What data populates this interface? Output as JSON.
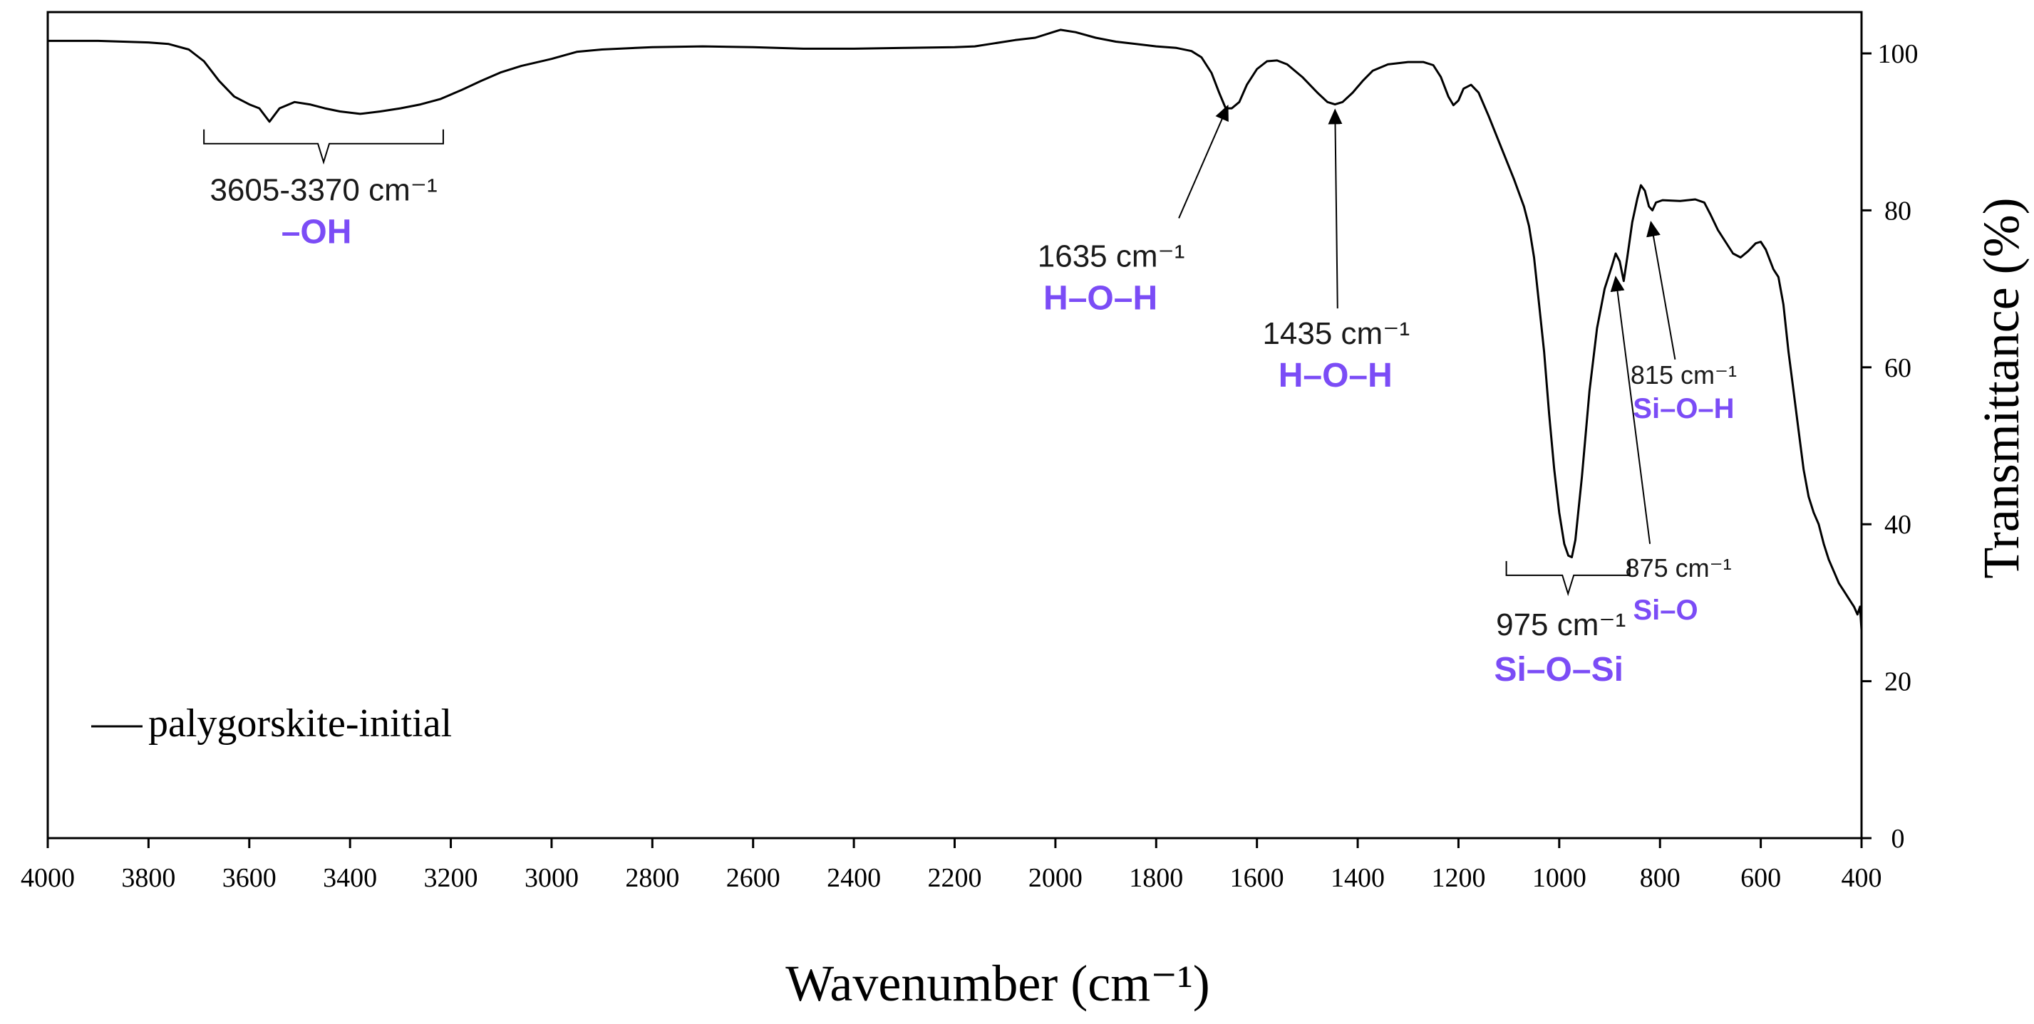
{
  "chart_data": {
    "type": "line",
    "title": "",
    "xlabel": "Wavenumber (cm⁻¹)",
    "ylabel": "Transmittance (%)",
    "xlim": [
      4000,
      400
    ],
    "ylim": [
      0,
      105
    ],
    "x_ticks": [
      4000,
      3800,
      3600,
      3400,
      3200,
      3000,
      2800,
      2600,
      2400,
      2200,
      2000,
      1800,
      1600,
      1400,
      1200,
      1000,
      800,
      600,
      400
    ],
    "y_ticks": [
      0,
      20,
      40,
      60,
      80,
      100
    ],
    "y_axis_side": "right",
    "grid": false,
    "legend": {
      "position": "bottom-left",
      "entries": [
        "palygorskite-initial"
      ]
    },
    "series": [
      {
        "name": "palygorskite-initial",
        "color": "#000000",
        "points": [
          [
            4000,
            101.6
          ],
          [
            3900,
            101.6
          ],
          [
            3800,
            101.4
          ],
          [
            3760,
            101.2
          ],
          [
            3720,
            100.5
          ],
          [
            3690,
            99.0
          ],
          [
            3660,
            96.5
          ],
          [
            3630,
            94.5
          ],
          [
            3600,
            93.5
          ],
          [
            3580,
            93.0
          ],
          [
            3560,
            91.3
          ],
          [
            3540,
            93.0
          ],
          [
            3510,
            93.8
          ],
          [
            3480,
            93.5
          ],
          [
            3450,
            93.0
          ],
          [
            3420,
            92.6
          ],
          [
            3380,
            92.3
          ],
          [
            3340,
            92.6
          ],
          [
            3300,
            93.0
          ],
          [
            3260,
            93.5
          ],
          [
            3220,
            94.2
          ],
          [
            3180,
            95.3
          ],
          [
            3140,
            96.5
          ],
          [
            3100,
            97.6
          ],
          [
            3060,
            98.4
          ],
          [
            3000,
            99.3
          ],
          [
            2950,
            100.2
          ],
          [
            2900,
            100.5
          ],
          [
            2800,
            100.8
          ],
          [
            2700,
            100.9
          ],
          [
            2600,
            100.8
          ],
          [
            2500,
            100.6
          ],
          [
            2400,
            100.6
          ],
          [
            2300,
            100.7
          ],
          [
            2200,
            100.8
          ],
          [
            2160,
            100.9
          ],
          [
            2120,
            101.3
          ],
          [
            2080,
            101.7
          ],
          [
            2040,
            102.0
          ],
          [
            2000,
            102.8
          ],
          [
            1990,
            103.0
          ],
          [
            1960,
            102.7
          ],
          [
            1920,
            102.0
          ],
          [
            1880,
            101.5
          ],
          [
            1840,
            101.2
          ],
          [
            1800,
            100.9
          ],
          [
            1760,
            100.7
          ],
          [
            1730,
            100.3
          ],
          [
            1710,
            99.5
          ],
          [
            1690,
            97.5
          ],
          [
            1675,
            95.0
          ],
          [
            1662,
            93.0
          ],
          [
            1650,
            93.0
          ],
          [
            1635,
            93.8
          ],
          [
            1620,
            96.0
          ],
          [
            1600,
            98.0
          ],
          [
            1580,
            99.0
          ],
          [
            1560,
            99.1
          ],
          [
            1540,
            98.6
          ],
          [
            1510,
            97.0
          ],
          [
            1480,
            95.0
          ],
          [
            1460,
            93.8
          ],
          [
            1445,
            93.5
          ],
          [
            1430,
            93.8
          ],
          [
            1410,
            95.0
          ],
          [
            1390,
            96.5
          ],
          [
            1370,
            97.8
          ],
          [
            1340,
            98.6
          ],
          [
            1300,
            98.9
          ],
          [
            1270,
            98.9
          ],
          [
            1250,
            98.5
          ],
          [
            1235,
            97.0
          ],
          [
            1220,
            94.5
          ],
          [
            1210,
            93.4
          ],
          [
            1200,
            94.0
          ],
          [
            1190,
            95.5
          ],
          [
            1175,
            96.0
          ],
          [
            1160,
            95.0
          ],
          [
            1140,
            92.0
          ],
          [
            1115,
            88.0
          ],
          [
            1090,
            84.0
          ],
          [
            1070,
            80.5
          ],
          [
            1060,
            78.0
          ],
          [
            1050,
            74.0
          ],
          [
            1040,
            68.0
          ],
          [
            1030,
            62.0
          ],
          [
            1020,
            54.0
          ],
          [
            1010,
            47.0
          ],
          [
            1000,
            41.5
          ],
          [
            990,
            37.5
          ],
          [
            982,
            36.0
          ],
          [
            975,
            35.8
          ],
          [
            968,
            38.0
          ],
          [
            955,
            46.0
          ],
          [
            940,
            57.0
          ],
          [
            925,
            65.0
          ],
          [
            910,
            70.0
          ],
          [
            895,
            73.0
          ],
          [
            888,
            74.5
          ],
          [
            880,
            73.5
          ],
          [
            872,
            71.0
          ],
          [
            865,
            74.0
          ],
          [
            855,
            78.5
          ],
          [
            845,
            81.5
          ],
          [
            838,
            83.2
          ],
          [
            830,
            82.5
          ],
          [
            822,
            80.5
          ],
          [
            815,
            80.0
          ],
          [
            808,
            81.0
          ],
          [
            795,
            81.3
          ],
          [
            760,
            81.2
          ],
          [
            730,
            81.4
          ],
          [
            712,
            81.0
          ],
          [
            700,
            79.5
          ],
          [
            685,
            77.5
          ],
          [
            670,
            76.0
          ],
          [
            655,
            74.5
          ],
          [
            640,
            74.0
          ],
          [
            625,
            74.8
          ],
          [
            610,
            75.8
          ],
          [
            600,
            76.0
          ],
          [
            590,
            75.0
          ],
          [
            575,
            72.5
          ],
          [
            565,
            71.5
          ],
          [
            555,
            68.0
          ],
          [
            545,
            62.0
          ],
          [
            535,
            57.0
          ],
          [
            525,
            52.0
          ],
          [
            515,
            47.0
          ],
          [
            505,
            43.5
          ],
          [
            495,
            41.5
          ],
          [
            485,
            40.0
          ],
          [
            475,
            37.5
          ],
          [
            465,
            35.5
          ],
          [
            455,
            34.0
          ],
          [
            445,
            32.5
          ],
          [
            435,
            31.5
          ],
          [
            425,
            30.5
          ],
          [
            415,
            29.5
          ],
          [
            408,
            28.5
          ],
          [
            403,
            29.5
          ],
          [
            400,
            26.5
          ]
        ]
      }
    ],
    "annotations": [
      {
        "type": "bracket",
        "x_from": 3690,
        "x_to": 3215,
        "y": 88.5,
        "wavenumber": "3605-3370 cm⁻¹",
        "group": "–OH"
      },
      {
        "type": "arrow",
        "target": [
          1658,
          93.3
        ],
        "from": [
          1755,
          79.0
        ],
        "wavenumber": "1635 cm⁻¹",
        "group": "H–O–H"
      },
      {
        "type": "arrow",
        "target": [
          1445,
          92.8
        ],
        "from": [
          1440,
          67.5
        ],
        "wavenumber": "1435 cm⁻¹",
        "group": "H–O–H"
      },
      {
        "type": "arrow",
        "target": [
          818,
          78.5
        ],
        "from": [
          770,
          61.0
        ],
        "wavenumber": "815 cm⁻¹",
        "group": "Si–O–H"
      },
      {
        "type": "arrow",
        "target": [
          888,
          71.5
        ],
        "from": [
          820,
          37.5
        ],
        "wavenumber": "875 cm⁻¹",
        "group": "Si–O"
      },
      {
        "type": "bracket",
        "x_from": 1105,
        "x_to": 860,
        "y": 33.5,
        "wavenumber": "975 cm⁻¹",
        "group": "Si–O–Si"
      }
    ],
    "annotation_colors": {
      "wavenumber": "#1a1a1a",
      "group": "#7b4cf6"
    }
  }
}
